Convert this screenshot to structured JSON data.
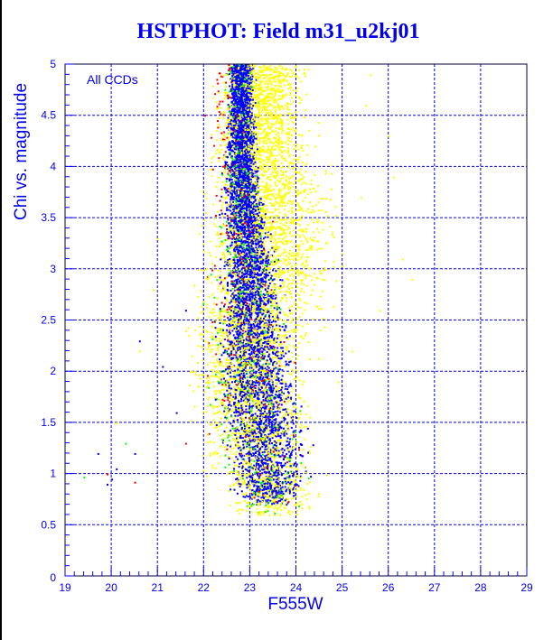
{
  "chart_data": {
    "type": "scatter",
    "title": "HSTPHOT: Field m31_u2kj01",
    "xlabel": "F555W",
    "ylabel": "Chi vs. magnitude",
    "annotation": "All CCDs",
    "xlim": [
      19,
      29
    ],
    "ylim": [
      0,
      5
    ],
    "xticks": [
      "19",
      "20",
      "21",
      "22",
      "23",
      "24",
      "25",
      "26",
      "27",
      "28",
      "29"
    ],
    "yticks": [
      "0",
      "0.5",
      "1",
      "1.5",
      "2",
      "2.5",
      "3",
      "3.5",
      "4",
      "4.5",
      "5"
    ],
    "grid": true,
    "note": "Dense point cloud; each series described by magnitude envelope [chi, mag_min, mag_max] and point count",
    "series": [
      {
        "name": "yellow",
        "color": "#ffff00",
        "count": 4500,
        "envelope": [
          [
            0.6,
            22.5,
            24.6
          ],
          [
            1.0,
            21.8,
            24.7
          ],
          [
            1.5,
            21.5,
            24.6
          ],
          [
            2.0,
            21.4,
            24.4
          ],
          [
            2.5,
            21.4,
            24.8
          ],
          [
            3.0,
            21.5,
            25.2
          ],
          [
            3.5,
            21.7,
            25.2
          ],
          [
            4.0,
            21.8,
            24.8
          ],
          [
            4.5,
            21.9,
            24.5
          ],
          [
            5.0,
            22.0,
            24.6
          ]
        ],
        "outliers": [
          [
            25.5,
            4.6
          ],
          [
            26.0,
            4.3
          ],
          [
            26.3,
            3.1
          ],
          [
            25.8,
            2.6
          ],
          [
            25.2,
            2.2
          ],
          [
            26.5,
            2.9
          ],
          [
            25.6,
            4.9
          ],
          [
            20.1,
            1.5
          ],
          [
            20.6,
            2.2
          ],
          [
            20.9,
            2.8
          ],
          [
            21.0,
            3.3
          ],
          [
            24.9,
            1.9
          ],
          [
            25.4,
            3.7
          ],
          [
            26.1,
            3.9
          ]
        ]
      },
      {
        "name": "blue",
        "color": "#0000ff",
        "count": 5000,
        "envelope": [
          [
            0.7,
            22.8,
            24.0
          ],
          [
            1.0,
            22.3,
            24.5
          ],
          [
            1.5,
            22.1,
            24.4
          ],
          [
            2.0,
            22.1,
            24.1
          ],
          [
            2.5,
            22.2,
            23.9
          ],
          [
            3.0,
            22.3,
            23.7
          ],
          [
            3.5,
            22.4,
            23.4
          ],
          [
            4.0,
            22.4,
            23.2
          ],
          [
            4.5,
            22.5,
            23.1
          ],
          [
            5.0,
            22.6,
            23.0
          ]
        ],
        "outliers": [
          [
            19.7,
            1.2
          ],
          [
            19.9,
            0.9
          ],
          [
            20.1,
            1.05
          ],
          [
            20.5,
            1.2
          ],
          [
            20.6,
            2.3
          ],
          [
            21.4,
            1.6
          ],
          [
            21.6,
            2.6
          ],
          [
            20.0,
            0.95
          ],
          [
            21.1,
            2.05
          ]
        ]
      },
      {
        "name": "green",
        "color": "#00ff00",
        "count": 600,
        "envelope": [
          [
            0.6,
            22.6,
            24.2
          ],
          [
            1.0,
            22.0,
            24.6
          ],
          [
            1.5,
            21.9,
            24.4
          ],
          [
            2.0,
            21.9,
            24.1
          ],
          [
            2.5,
            22.0,
            23.9
          ],
          [
            3.0,
            22.1,
            23.7
          ],
          [
            3.5,
            22.2,
            23.5
          ],
          [
            4.0,
            22.3,
            23.3
          ],
          [
            4.5,
            22.4,
            23.1
          ],
          [
            5.0,
            22.5,
            23.0
          ]
        ],
        "outliers": [
          [
            19.4,
            0.97
          ],
          [
            20.3,
            1.3
          ]
        ]
      },
      {
        "name": "red",
        "color": "#ff0000",
        "count": 300,
        "envelope": [
          [
            0.7,
            22.5,
            24.2
          ],
          [
            1.0,
            21.9,
            24.7
          ],
          [
            1.5,
            21.7,
            24.4
          ],
          [
            2.0,
            21.7,
            24.1
          ],
          [
            2.5,
            21.8,
            23.9
          ],
          [
            3.0,
            21.9,
            23.7
          ],
          [
            3.5,
            22.0,
            23.5
          ],
          [
            4.0,
            22.0,
            23.3
          ],
          [
            4.5,
            22.0,
            23.1
          ],
          [
            5.0,
            22.1,
            23.0
          ]
        ],
        "outliers": [
          [
            20.5,
            0.92
          ],
          [
            19.9,
            1.0
          ],
          [
            21.6,
            1.3
          ]
        ]
      }
    ]
  }
}
